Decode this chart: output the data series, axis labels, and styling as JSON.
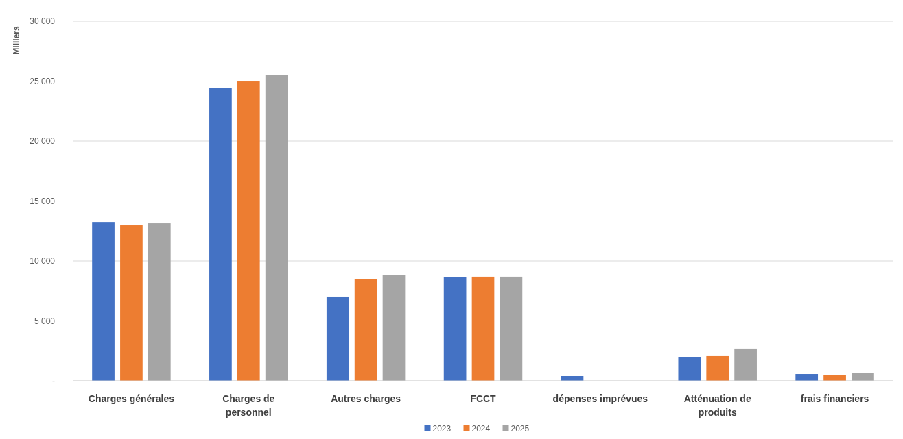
{
  "chart_data": {
    "type": "bar",
    "ylabel": "Milliers",
    "categories": [
      "Charges générales",
      "Charges de personnel",
      "Autres charges",
      "FCCT",
      "dépenses imprévues",
      "Atténuation de produits",
      "frais financiers"
    ],
    "series": [
      {
        "name": "2023",
        "color": "#4472c4",
        "values": [
          13250,
          24400,
          7030,
          8630,
          400,
          2000,
          570
        ]
      },
      {
        "name": "2024",
        "color": "#ed7d31",
        "values": [
          12970,
          24970,
          8460,
          8690,
          0,
          2060,
          510
        ]
      },
      {
        "name": "2025",
        "color": "#a5a5a5",
        "values": [
          13140,
          25490,
          8800,
          8690,
          0,
          2690,
          630
        ]
      }
    ],
    "ylim": [
      0,
      30000
    ],
    "yticks": [
      {
        "value": 0,
        "label": "-"
      },
      {
        "value": 5000,
        "label": "5 000"
      },
      {
        "value": 10000,
        "label": "10 000"
      },
      {
        "value": 15000,
        "label": "15 000"
      },
      {
        "value": 20000,
        "label": "20 000"
      },
      {
        "value": 25000,
        "label": "25 000"
      },
      {
        "value": 30000,
        "label": "30 000"
      }
    ],
    "grid": "y",
    "legend": "bottom"
  }
}
